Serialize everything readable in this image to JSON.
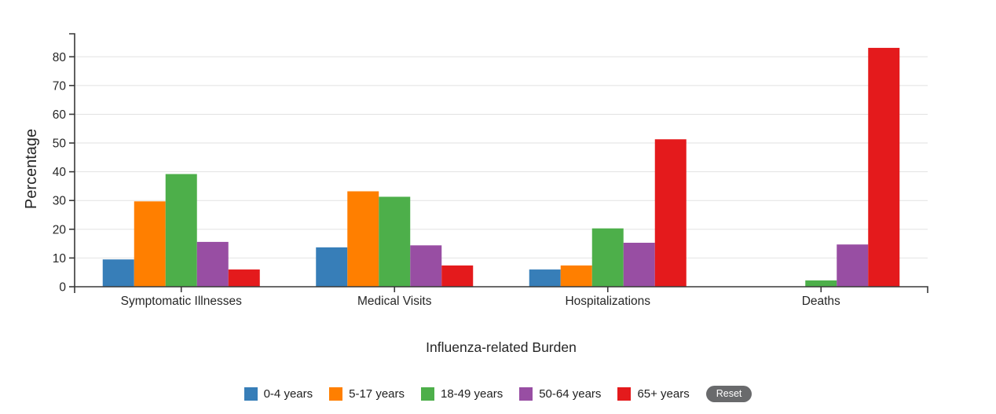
{
  "chart": {
    "reset_label": "Reset"
  },
  "chart_data": {
    "type": "bar",
    "categories": [
      "Symptomatic Illnesses",
      "Medical Visits",
      "Hospitalizations",
      "Deaths"
    ],
    "series": [
      {
        "name": "0-4 years",
        "color": "#377eb8",
        "values": [
          9.5,
          13.7,
          6.0,
          0
        ]
      },
      {
        "name": "5-17 years",
        "color": "#ff7f00",
        "values": [
          29.7,
          33.2,
          7.4,
          0
        ]
      },
      {
        "name": "18-49 years",
        "color": "#4daf4a",
        "values": [
          39.2,
          31.3,
          20.3,
          2.2
        ]
      },
      {
        "name": "50-64 years",
        "color": "#984ea3",
        "values": [
          15.6,
          14.4,
          15.3,
          14.7
        ]
      },
      {
        "name": "65+ years",
        "color": "#e41a1c",
        "values": [
          6.0,
          7.4,
          51.3,
          83.1
        ]
      }
    ],
    "title": "",
    "xlabel": "Influenza-related Burden",
    "ylabel": "Percentage",
    "ylim": [
      0,
      88
    ],
    "yticks": [
      0,
      10,
      20,
      30,
      40,
      50,
      60,
      70,
      80
    ],
    "grid": "horizontal",
    "legend_position": "bottom",
    "colors": {
      "axis": "#383838",
      "gridline": "#e2e2e2",
      "tick_text": "#262626",
      "reset_bg": "#696a6c",
      "reset_text": "#ffffff"
    }
  }
}
